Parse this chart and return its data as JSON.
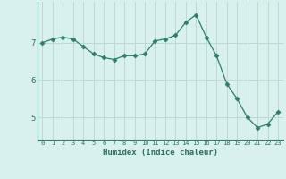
{
  "x": [
    0,
    1,
    2,
    3,
    4,
    5,
    6,
    7,
    8,
    9,
    10,
    11,
    12,
    13,
    14,
    15,
    16,
    17,
    18,
    19,
    20,
    21,
    22,
    23
  ],
  "y": [
    7.0,
    7.1,
    7.15,
    7.1,
    6.9,
    6.7,
    6.6,
    6.55,
    6.65,
    6.65,
    6.7,
    7.05,
    7.1,
    7.2,
    7.55,
    7.75,
    7.15,
    6.65,
    5.9,
    5.5,
    5.0,
    4.72,
    4.82,
    5.15
  ],
  "line_color": "#2d7d6e",
  "marker": "D",
  "marker_size": 2.5,
  "bg_color": "#d8f0ee",
  "grid_color": "#c0d8d4",
  "xlabel": "Humidex (Indice chaleur)",
  "yticks": [
    5,
    6,
    7
  ],
  "xticks": [
    0,
    1,
    2,
    3,
    4,
    5,
    6,
    7,
    8,
    9,
    10,
    11,
    12,
    13,
    14,
    15,
    16,
    17,
    18,
    19,
    20,
    21,
    22,
    23
  ],
  "ylim": [
    4.4,
    8.1
  ],
  "xlim": [
    -0.5,
    23.5
  ]
}
